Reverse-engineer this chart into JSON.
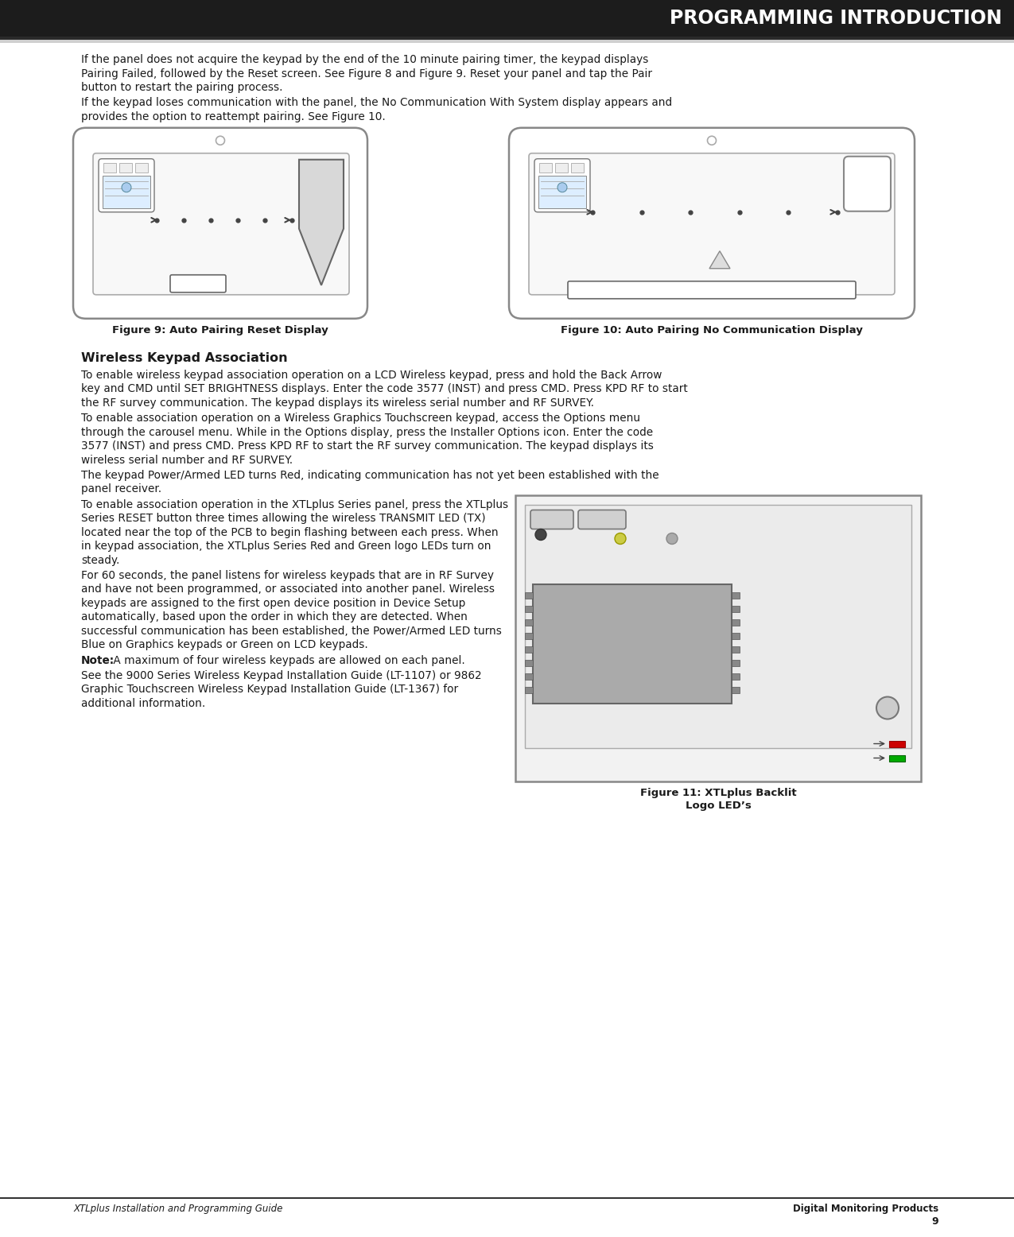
{
  "title": "PROGRAMMING INTRODUCTION",
  "bg_color": "#ffffff",
  "footer_left": "XTLplus Installation and Programming Guide",
  "footer_right": "Digital Monitoring Products",
  "page_number": "9",
  "fig9_caption": "Figure 9: Auto Pairing Reset Display",
  "fig10_caption": "Figure 10: Auto Pairing No Communication Display",
  "fig11_caption": "Figure 11: XTLplus Backlit\nLogo LED’s",
  "section_title": "Wireless Keypad Association",
  "para1_line1": "If the panel does not acquire the keypad by the end of the 10 minute pairing timer, the keypad displays",
  "para1_line2": "Pairing Failed, followed by the Reset screen. See Figure 8 and Figure 9. Reset your panel and tap the Pair",
  "para1_line3": "button to restart the pairing process.",
  "para2_line1": "If the keypad loses communication with the panel, the No Communication With System display appears and",
  "para2_line2": "provides the option to reattempt pairing. See Figure 10.",
  "para3_line1": "To enable wireless keypad association operation on a LCD Wireless keypad, press and hold the Back Arrow",
  "para3_line2": "key and CMD until SET BRIGHTNESS displays. Enter the code 3577 (INST) and press CMD. Press KPD RF to start",
  "para3_line3": "the RF survey communication. The keypad displays its wireless serial number and RF SURVEY.",
  "para4_line1": "To enable association operation on a Wireless Graphics Touchscreen keypad, access the Options menu",
  "para4_line2": "through the carousel menu. While in the Options display, press the Installer Options icon. Enter the code",
  "para4_line3": "3577 (INST) and press CMD. Press KPD RF to start the RF survey communication. The keypad displays its",
  "para4_line4": "wireless serial number and RF SURVEY.",
  "para5_line1": "The keypad Power/Armed LED turns Red, indicating communication has not yet been established with the",
  "para5_line2": "panel receiver.",
  "para6_line1": "To enable association operation in the XTLplus Series panel, press the XTLplus",
  "para6_line2": "Series RESET button three times allowing the wireless TRANSMIT LED (TX)",
  "para6_line3": "located near the top of the PCB to begin flashing between each press. When",
  "para6_line4": "in keypad association, the XTLplus Series Red and Green logo LEDs turn on",
  "para6_line5": "steady.",
  "para7_line1": "For 60 seconds, the panel listens for wireless keypads that are in RF Survey",
  "para7_line2": "and have not been programmed, or associated into another panel. Wireless",
  "para7_line3": "keypads are assigned to the first open device position in Device Setup",
  "para7_line4": "automatically, based upon the order in which they are detected. When",
  "para7_line5": "successful communication has been established, the Power/Armed LED turns",
  "para7_line6": "Blue on Graphics keypads or Green on LCD keypads.",
  "note_line": "Note: A maximum of four wireless keypads are allowed on each panel.",
  "para8_line1": "See the 9000 Series Wireless Keypad Installation Guide (LT-1107) or 9862",
  "para8_line2": "Graphic Touchscreen Wireless Keypad Installation Guide (LT-1367) for",
  "para8_line3": "additional information."
}
